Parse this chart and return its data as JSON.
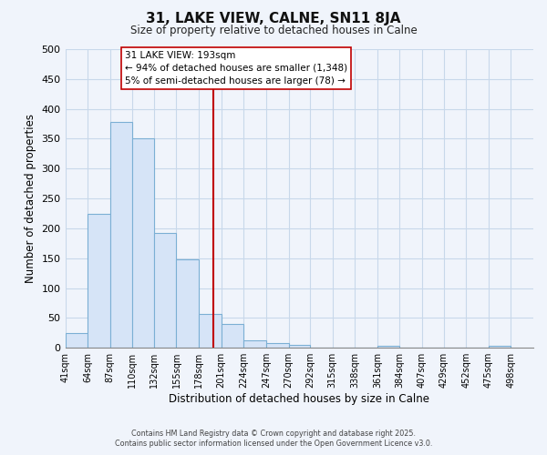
{
  "title": "31, LAKE VIEW, CALNE, SN11 8JA",
  "subtitle": "Size of property relative to detached houses in Calne",
  "xlabel": "Distribution of detached houses by size in Calne",
  "ylabel": "Number of detached properties",
  "bin_labels": [
    "41sqm",
    "64sqm",
    "87sqm",
    "110sqm",
    "132sqm",
    "155sqm",
    "178sqm",
    "201sqm",
    "224sqm",
    "247sqm",
    "270sqm",
    "292sqm",
    "315sqm",
    "338sqm",
    "361sqm",
    "384sqm",
    "407sqm",
    "429sqm",
    "452sqm",
    "475sqm",
    "498sqm"
  ],
  "bin_edges": [
    41,
    64,
    87,
    110,
    132,
    155,
    178,
    201,
    224,
    247,
    270,
    292,
    315,
    338,
    361,
    384,
    407,
    429,
    452,
    475,
    498
  ],
  "bar_heights": [
    25,
    225,
    378,
    350,
    193,
    148,
    57,
    40,
    12,
    8,
    5,
    1,
    0,
    0,
    3,
    0,
    0,
    0,
    0,
    3
  ],
  "bar_color": "#d6e4f7",
  "bar_edge_color": "#7bafd4",
  "vline_x": 193,
  "vline_color": "#c00000",
  "ylim": [
    0,
    500
  ],
  "yticks": [
    0,
    50,
    100,
    150,
    200,
    250,
    300,
    350,
    400,
    450,
    500
  ],
  "annotation_line1": "31 LAKE VIEW: 193sqm",
  "annotation_line2": "← 94% of detached houses are smaller (1,348)",
  "annotation_line3": "5% of semi-detached houses are larger (78) →",
  "background_color": "#f0f4fb",
  "grid_color": "#c8d8ea",
  "footer_line1": "Contains HM Land Registry data © Crown copyright and database right 2025.",
  "footer_line2": "Contains public sector information licensed under the Open Government Licence v3.0."
}
